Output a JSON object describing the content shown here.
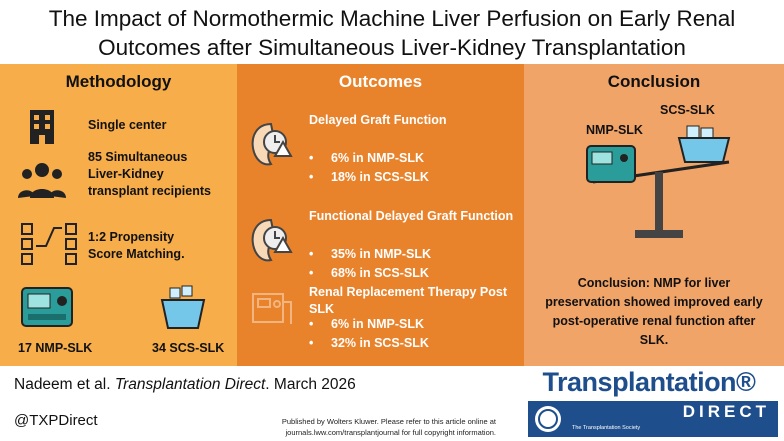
{
  "header": {
    "title_lines": [
      "The Impact of Normothermic Machine Liver Perfusion on Early Renal",
      "Outcomes after Simultaneous Liver-Kidney Transplantation"
    ]
  },
  "methodology": {
    "heading": "Methodology",
    "items": [
      "Single center",
      "85 Simultaneous Liver-Kidney transplant recipients",
      "1:2 Propensity Score Matching."
    ],
    "group_labels": [
      "17 NMP-SLK",
      "34 SCS-SLK"
    ]
  },
  "outcomes": {
    "heading": "Outcomes",
    "groups": [
      {
        "title": "Delayed Graft Function",
        "bullets": [
          "6% in NMP-SLK",
          "18% in SCS-SLK"
        ]
      },
      {
        "title": "Functional Delayed Graft Function",
        "bullets": [
          "35% in NMP-SLK",
          "68% in SCS-SLK"
        ]
      },
      {
        "title": "Renal Replacement Therapy Post SLK",
        "bullets": [
          "6% in NMP-SLK",
          "32% in SCS-SLK"
        ]
      }
    ]
  },
  "conclusion": {
    "heading": "Conclusion",
    "labels": [
      "NMP-SLK",
      "SCS-SLK"
    ],
    "text": "Conclusion: NMP for liver preservation showed improved early post-operative renal function after SLK."
  },
  "footer": {
    "citation": [
      "Nadeem et al. ",
      "Transplantation Direct",
      ". March 2026"
    ],
    "handle": "@TXPDirect",
    "publisher_note": [
      "Published by Wolters Kluwer. Please refer to this article online at",
      "journals.lww.com/transplantjournal for full copyright information."
    ]
  },
  "logo": {
    "name": "Transplantation®",
    "sub": "DIRECT",
    "society": "The Transplantation Society"
  }
}
